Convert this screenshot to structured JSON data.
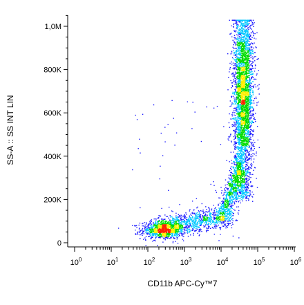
{
  "chart_data": {
    "type": "scatter",
    "subtype": "flow-cytometry-density-dot-plot",
    "xlabel": "CD11b APC-Cy™7",
    "ylabel": "SS-A :: SS INT LIN",
    "x_scale": "log",
    "y_scale": "linear",
    "xlim": [
      1,
      1000000
    ],
    "ylim": [
      -20000,
      1050000
    ],
    "x_ticks": [
      {
        "value": 1,
        "base": "10",
        "exp": "0"
      },
      {
        "value": 10,
        "base": "10",
        "exp": "1"
      },
      {
        "value": 100,
        "base": "10",
        "exp": "2"
      },
      {
        "value": 1000,
        "base": "10",
        "exp": "3"
      },
      {
        "value": 10000,
        "base": "10",
        "exp": "4"
      },
      {
        "value": 100000,
        "base": "10",
        "exp": "5"
      },
      {
        "value": 1000000,
        "base": "10",
        "exp": "6"
      }
    ],
    "y_ticks": [
      {
        "value": 0,
        "label": "0"
      },
      {
        "value": 200000,
        "label": "200K"
      },
      {
        "value": 400000,
        "label": "400K"
      },
      {
        "value": 600000,
        "label": "600K"
      },
      {
        "value": 800000,
        "label": "800K"
      },
      {
        "value": 1000000,
        "label": "1,0M"
      }
    ],
    "populations": [
      {
        "x_center": 250,
        "y_center": 60000,
        "x_log_spread": 0.35,
        "y_spread": 25000,
        "density": "high"
      },
      {
        "x_center": 2500,
        "y_center": 80000,
        "x_log_spread": 0.45,
        "y_spread": 30000,
        "density": "medium"
      },
      {
        "x_center": 40000,
        "y_center": 680000,
        "x_log_spread": 0.2,
        "y_spread": 180000,
        "density": "high"
      },
      {
        "x_center": 30000,
        "y_center": 300000,
        "x_log_spread": 0.2,
        "y_spread": 100000,
        "density": "medium"
      }
    ],
    "grid": false,
    "legend": "none",
    "colors": {
      "low_density": "#1a1aff",
      "mid_low_density": "#00c8ff",
      "mid_density": "#00dd00",
      "mid_high_density": "#ffee00",
      "high_density": "#ff2200"
    }
  }
}
